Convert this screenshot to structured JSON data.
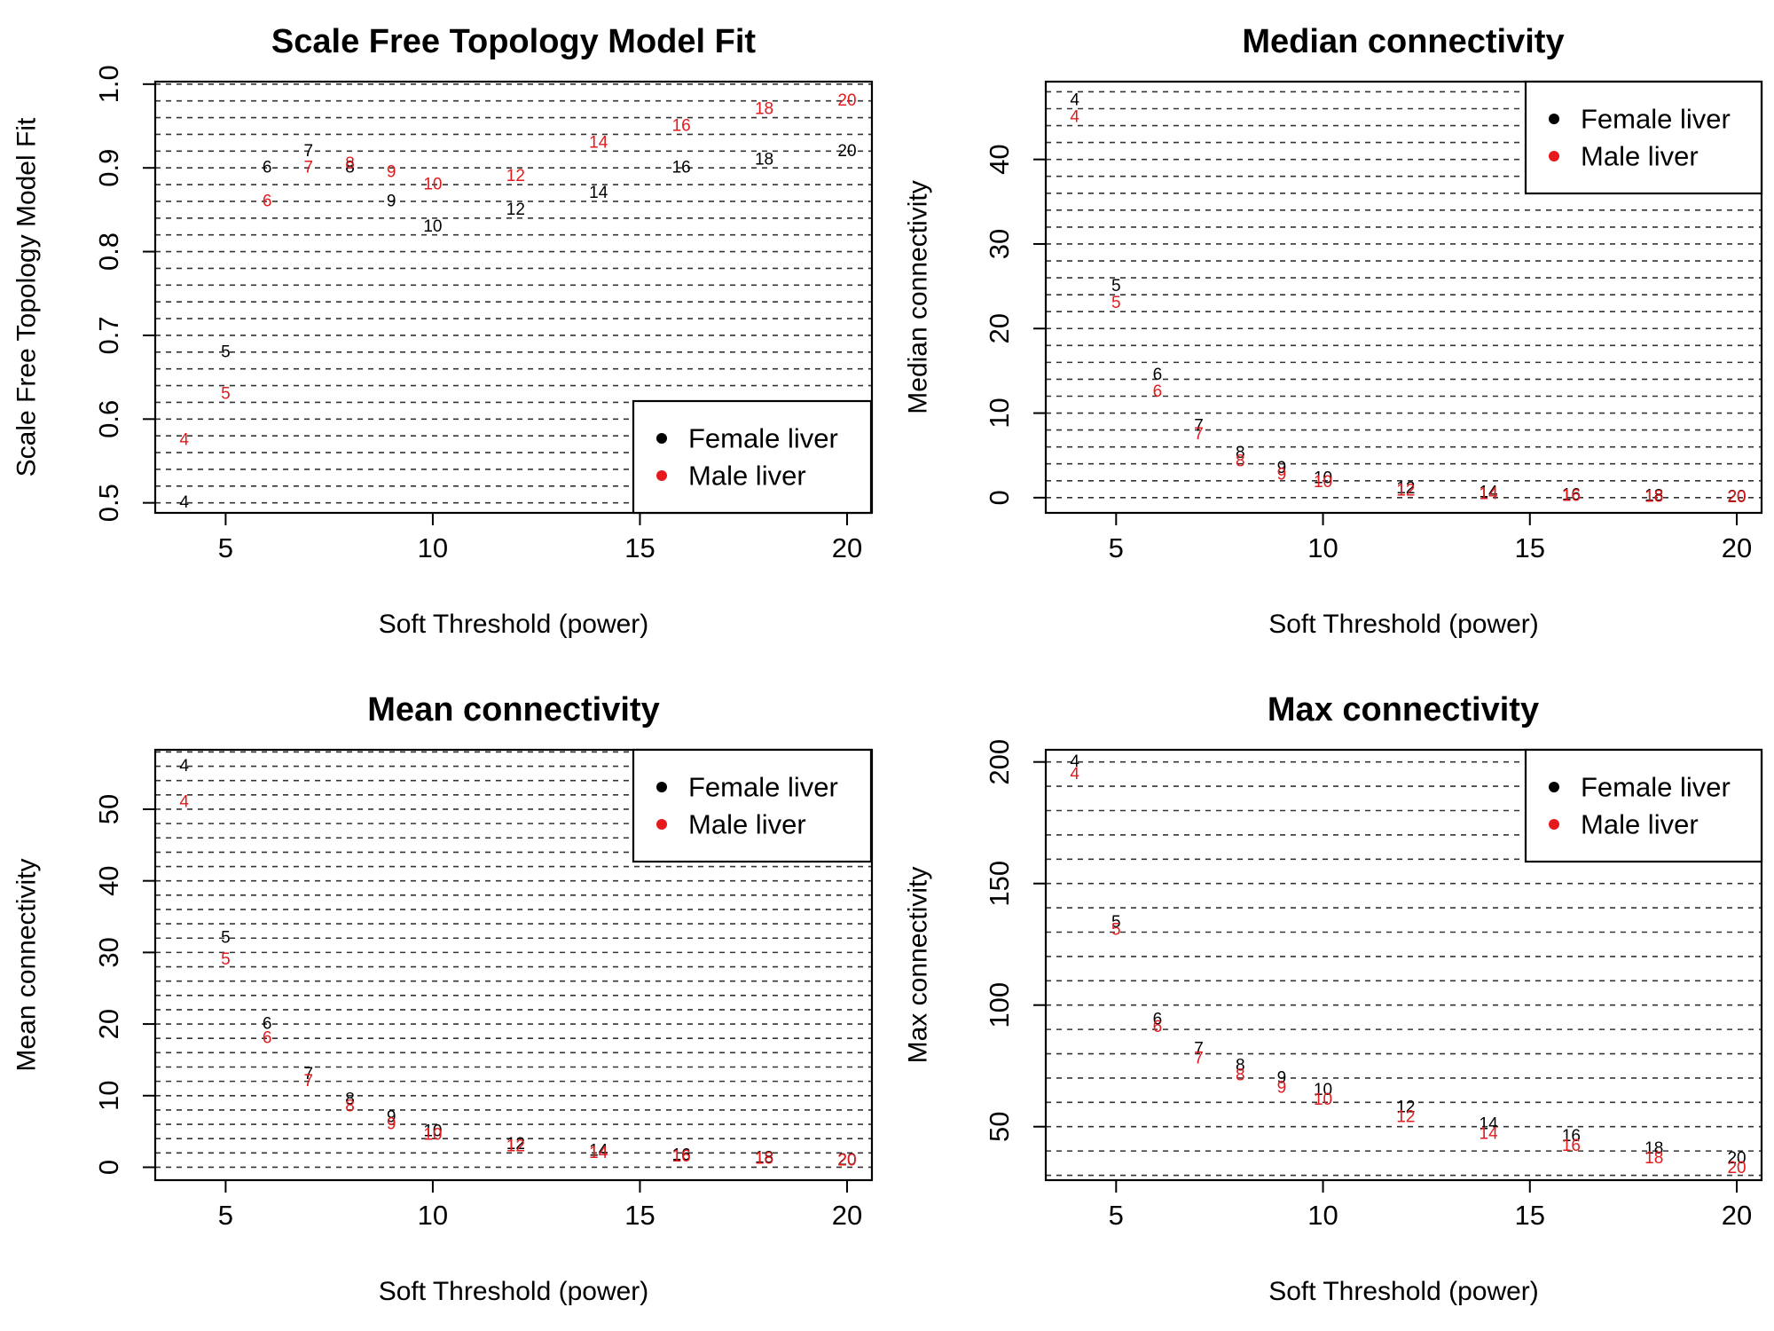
{
  "figure": {
    "legend_entries": [
      "Female liver",
      "Male liver"
    ],
    "series_colors": {
      "Female liver": "#000000",
      "Male liver": "#e41a1c"
    }
  },
  "chart_data": [
    {
      "type": "scatter",
      "title": "Scale Free Topology Model Fit",
      "xlabel": "Soft Threshold (power)",
      "ylabel": "Scale Free Topology Model Fit",
      "xlim": [
        3.3,
        20.6
      ],
      "ylim": [
        0.488,
        1.003
      ],
      "xticks": [
        5,
        10,
        15,
        20
      ],
      "yticks": [
        0.5,
        0.6,
        0.7,
        0.8,
        0.9,
        1.0
      ],
      "ytick_labels": [
        "0.5",
        "0.6",
        "0.7",
        "0.8",
        "0.9",
        "1.0"
      ],
      "grid_step": 0.02,
      "grid": true,
      "legend_position": "bottom-right",
      "x": [
        4,
        5,
        6,
        7,
        8,
        9,
        10,
        12,
        14,
        16,
        18,
        20
      ],
      "point_labels": [
        "4",
        "5",
        "6",
        "7",
        "8",
        "9",
        "10",
        "12",
        "14",
        "16",
        "18",
        "20"
      ],
      "series": [
        {
          "name": "Female liver",
          "color": "#000000",
          "values": [
            0.5,
            0.68,
            0.9,
            0.92,
            0.9,
            0.86,
            0.83,
            0.85,
            0.87,
            0.9,
            0.91,
            0.92
          ]
        },
        {
          "name": "Male liver",
          "color": "#e41a1c",
          "values": [
            0.575,
            0.63,
            0.86,
            0.9,
            0.905,
            0.895,
            0.88,
            0.89,
            0.93,
            0.95,
            0.97,
            0.98
          ]
        }
      ]
    },
    {
      "type": "scatter",
      "title": "Median connectivity",
      "xlabel": "Soft Threshold (power)",
      "ylabel": "Median connectivity",
      "xlim": [
        3.3,
        20.6
      ],
      "ylim": [
        -1.8,
        49.2
      ],
      "xticks": [
        5,
        10,
        15,
        20
      ],
      "yticks": [
        0,
        10,
        20,
        30,
        40
      ],
      "ytick_labels": [
        "0",
        "10",
        "20",
        "30",
        "40"
      ],
      "grid_step": 2,
      "grid": true,
      "legend_position": "top-right",
      "x": [
        4,
        5,
        6,
        7,
        8,
        9,
        10,
        12,
        14,
        16,
        18,
        20
      ],
      "point_labels": [
        "4",
        "5",
        "6",
        "7",
        "8",
        "9",
        "10",
        "12",
        "14",
        "16",
        "18",
        "20"
      ],
      "series": [
        {
          "name": "Female liver",
          "color": "#000000",
          "values": [
            47,
            25,
            14.5,
            8.5,
            5.3,
            3.5,
            2.3,
            1.1,
            0.6,
            0.3,
            0.2,
            0.1
          ]
        },
        {
          "name": "Male liver",
          "color": "#e41a1c",
          "values": [
            45,
            23,
            12.5,
            7.5,
            4.3,
            2.7,
            1.8,
            0.8,
            0.4,
            0.2,
            0.1,
            0.05
          ]
        }
      ]
    },
    {
      "type": "scatter",
      "title": "Mean connectivity",
      "xlabel": "Soft Threshold (power)",
      "ylabel": "Mean connectivity",
      "xlim": [
        3.3,
        20.6
      ],
      "ylim": [
        -1.8,
        58.3
      ],
      "xticks": [
        5,
        10,
        15,
        20
      ],
      "yticks": [
        0,
        10,
        20,
        30,
        40,
        50
      ],
      "ytick_labels": [
        "0",
        "10",
        "20",
        "30",
        "40",
        "50"
      ],
      "grid_step": 2,
      "grid": true,
      "legend_position": "top-right",
      "x": [
        4,
        5,
        6,
        7,
        8,
        9,
        10,
        12,
        14,
        16,
        18,
        20
      ],
      "point_labels": [
        "4",
        "5",
        "6",
        "7",
        "8",
        "9",
        "10",
        "12",
        "14",
        "16",
        "18",
        "20"
      ],
      "series": [
        {
          "name": "Female liver",
          "color": "#000000",
          "values": [
            56,
            32,
            20,
            13,
            9.5,
            7,
            5,
            3.2,
            2.3,
            1.7,
            1.3,
            1.0
          ]
        },
        {
          "name": "Male liver",
          "color": "#e41a1c",
          "values": [
            51,
            29,
            18,
            12,
            8.5,
            6,
            4.5,
            2.9,
            2,
            1.5,
            1.2,
            0.9
          ]
        }
      ]
    },
    {
      "type": "scatter",
      "title": "Max connectivity",
      "xlabel": "Soft Threshold (power)",
      "ylabel": "Max connectivity",
      "xlim": [
        3.3,
        20.6
      ],
      "ylim": [
        28,
        205
      ],
      "xticks": [
        5,
        10,
        15,
        20
      ],
      "yticks": [
        50,
        100,
        150,
        200
      ],
      "ytick_labels": [
        "50",
        "100",
        "150",
        "200"
      ],
      "grid_step": 10,
      "grid": true,
      "legend_position": "top-right",
      "x": [
        4,
        5,
        6,
        7,
        8,
        9,
        10,
        12,
        14,
        16,
        18,
        20
      ],
      "point_labels": [
        "4",
        "5",
        "6",
        "7",
        "8",
        "9",
        "10",
        "12",
        "14",
        "16",
        "18",
        "20"
      ],
      "series": [
        {
          "name": "Female liver",
          "color": "#000000",
          "values": [
            200,
            134,
            94,
            82,
            75,
            70,
            65,
            58,
            51,
            46,
            41,
            37
          ]
        },
        {
          "name": "Male liver",
          "color": "#e41a1c",
          "values": [
            195,
            131,
            91,
            78,
            71,
            66,
            61,
            54,
            47,
            42,
            37,
            33
          ]
        }
      ]
    }
  ]
}
